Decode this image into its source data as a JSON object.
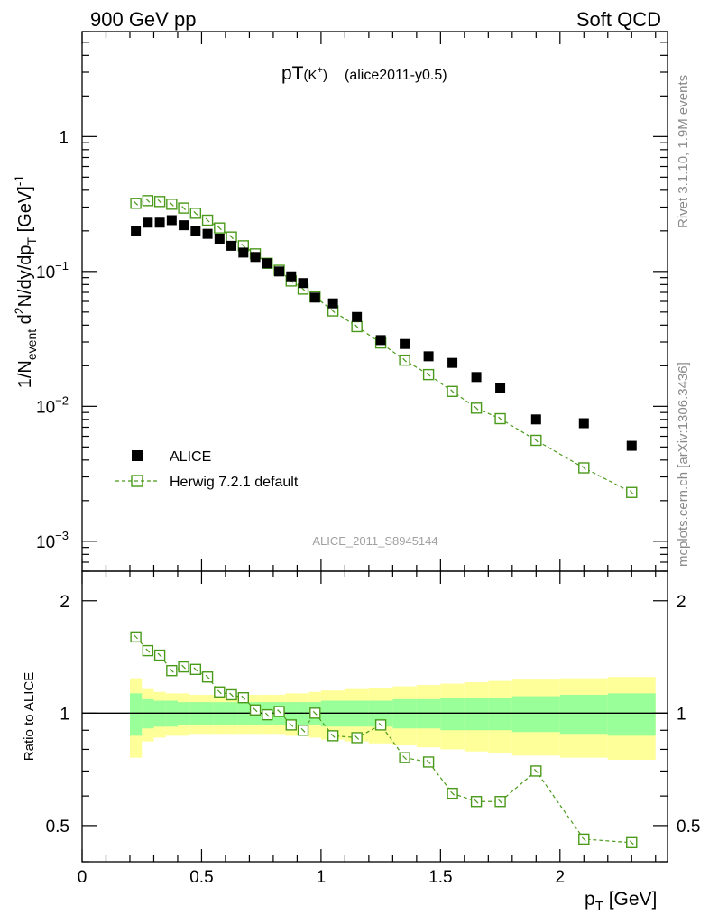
{
  "header": {
    "left": "900 GeV pp",
    "right": "Soft QCD"
  },
  "plot_title": {
    "main": "pT",
    "sub": "(K",
    "sup": "+",
    "close": ")",
    "tag": "(alice2011-y0.5)"
  },
  "ylabel_main": {
    "a": "1/N",
    "a_sub": "event",
    "b": " d",
    "b_sup": "2",
    "c": "N/dy/dp",
    "c_sub": "T",
    "d": " [GeV]",
    "d_sup": "-1"
  },
  "ylabel_ratio": "Ratio to ALICE",
  "xlabel": {
    "main": "p",
    "sub": "T",
    "unit": " [GeV]"
  },
  "analysis_id": "ALICE_2011_S8945144",
  "side_text": {
    "rivet": "Rivet 3.1.10,  1.9M events",
    "mcplots": "mcplots.cern.ch [arXiv:1306.3436]"
  },
  "legend": [
    {
      "label": "ALICE"
    },
    {
      "label": "Herwig 7.2.1 default"
    }
  ],
  "colors": {
    "data": "#000000",
    "mc": "#4a9a1a",
    "band_inner": "#99ff99",
    "band_outer": "#ffff99"
  },
  "tick_labels": {
    "main_y": [
      {
        "base": "10",
        "exp": "−3",
        "value": 0.001
      },
      {
        "base": "10",
        "exp": "−2",
        "value": 0.01
      },
      {
        "base": "10",
        "exp": "−1",
        "value": 0.1
      },
      {
        "base": "1",
        "exp": "",
        "value": 1
      }
    ],
    "ratio_y": [
      {
        "label": "0.5",
        "value": 0.5
      },
      {
        "label": "1",
        "value": 1
      },
      {
        "label": "2",
        "value": 2
      }
    ],
    "x": [
      {
        "label": "0",
        "value": 0
      },
      {
        "label": "0.5",
        "value": 0.5
      },
      {
        "label": "1",
        "value": 1
      },
      {
        "label": "1.5",
        "value": 1.5
      },
      {
        "label": "2",
        "value": 2
      }
    ]
  },
  "chart_data": [
    {
      "type": "scatter",
      "panel": "main",
      "yscale": "log",
      "xlim": [
        0,
        2.45
      ],
      "ylim": [
        0.0006,
        6
      ],
      "x": [
        0.225,
        0.275,
        0.325,
        0.375,
        0.425,
        0.475,
        0.525,
        0.575,
        0.625,
        0.675,
        0.725,
        0.775,
        0.825,
        0.875,
        0.925,
        0.975,
        1.05,
        1.15,
        1.25,
        1.35,
        1.45,
        1.55,
        1.65,
        1.75,
        1.9,
        2.1,
        2.3
      ],
      "series": [
        {
          "name": "ALICE",
          "values": [
            0.2,
            0.23,
            0.23,
            0.24,
            0.22,
            0.2,
            0.19,
            0.175,
            0.155,
            0.138,
            0.128,
            0.115,
            0.1,
            0.092,
            0.082,
            0.064,
            0.058,
            0.046,
            0.031,
            0.029,
            0.0235,
            0.021,
            0.0165,
            0.0137,
            0.008,
            0.0075,
            0.0051
          ]
        },
        {
          "name": "Herwig 7.2.1 default",
          "values": [
            0.32,
            0.335,
            0.33,
            0.315,
            0.295,
            0.27,
            0.24,
            0.21,
            0.18,
            0.155,
            0.135,
            0.115,
            0.102,
            0.085,
            0.074,
            0.065,
            0.051,
            0.039,
            0.0295,
            0.022,
            0.0172,
            0.0129,
            0.0097,
            0.0081,
            0.0056,
            0.0035,
            0.0023
          ]
        }
      ]
    },
    {
      "type": "line",
      "panel": "ratio",
      "yscale": "log",
      "xlim": [
        0,
        2.45
      ],
      "ylim": [
        0.4,
        2.4
      ],
      "ylabel": "Ratio to ALICE",
      "xlabel": "p_T [GeV]",
      "reference": 1,
      "x": [
        0.225,
        0.275,
        0.325,
        0.375,
        0.425,
        0.475,
        0.525,
        0.575,
        0.625,
        0.675,
        0.725,
        0.775,
        0.825,
        0.875,
        0.925,
        0.975,
        1.05,
        1.15,
        1.25,
        1.35,
        1.45,
        1.55,
        1.65,
        1.75,
        1.9,
        2.1,
        2.3
      ],
      "series": [
        {
          "name": "Herwig 7.2.1 default",
          "values": [
            1.6,
            1.47,
            1.43,
            1.3,
            1.33,
            1.31,
            1.25,
            1.14,
            1.12,
            1.1,
            1.02,
            0.99,
            1.01,
            0.93,
            0.9,
            1.0,
            0.87,
            0.86,
            0.93,
            0.76,
            0.74,
            0.61,
            0.58,
            0.58,
            0.7,
            0.46,
            0.45
          ]
        }
      ],
      "bands": {
        "bin_edges": [
          0.2,
          0.25,
          0.3,
          0.35,
          0.4,
          0.45,
          0.5,
          0.55,
          0.6,
          0.65,
          0.7,
          0.75,
          0.8,
          0.85,
          0.9,
          0.95,
          1.0,
          1.1,
          1.2,
          1.3,
          1.4,
          1.5,
          1.6,
          1.7,
          1.8,
          2.0,
          2.2,
          2.4
        ],
        "inner_half_width": [
          0.13,
          0.09,
          0.08,
          0.08,
          0.07,
          0.07,
          0.07,
          0.07,
          0.07,
          0.07,
          0.07,
          0.07,
          0.07,
          0.07,
          0.07,
          0.07,
          0.08,
          0.08,
          0.08,
          0.09,
          0.09,
          0.1,
          0.1,
          0.1,
          0.11,
          0.12,
          0.13
        ],
        "outer_half_width": [
          0.24,
          0.16,
          0.14,
          0.13,
          0.13,
          0.12,
          0.12,
          0.12,
          0.12,
          0.12,
          0.12,
          0.12,
          0.12,
          0.13,
          0.13,
          0.14,
          0.15,
          0.16,
          0.17,
          0.18,
          0.19,
          0.2,
          0.21,
          0.22,
          0.23,
          0.24,
          0.25
        ]
      }
    }
  ]
}
